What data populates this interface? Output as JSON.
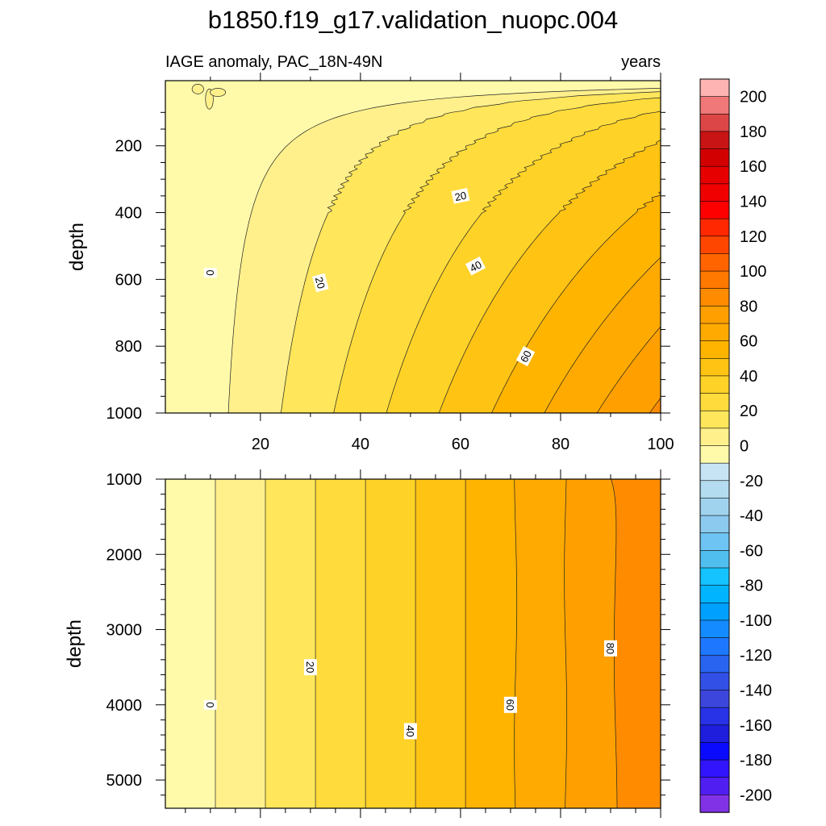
{
  "title": "b1850.f19_g17.validation_nuopc.004",
  "left_subtitle": "IAGE anomaly, PAC_18N-49N",
  "right_subtitle": "years",
  "chart_data": [
    {
      "type": "heatmap",
      "panel": "upper",
      "xlabel": "",
      "ylabel": "depth",
      "xlim": [
        1,
        100
      ],
      "ylim": [
        1000,
        5
      ],
      "x_ticks": [
        "20",
        "40",
        "60",
        "80",
        "100"
      ],
      "y_ticks": [
        "200",
        "400",
        "600",
        "800",
        "1000"
      ],
      "contour_interval": 10,
      "contour_labels": [
        {
          "text": "0",
          "x": 10,
          "depth": 580
        },
        {
          "text": "20",
          "x": 32,
          "depth": 610
        },
        {
          "text": "20",
          "x": 60,
          "depth": 350
        },
        {
          "text": "40",
          "x": 63,
          "depth": 560
        },
        {
          "text": "60",
          "x": 73,
          "depth": 830
        }
      ],
      "values_description_points": [
        {
          "x": 5,
          "depth": 100,
          "value": -5
        },
        {
          "x": 50,
          "depth": 100,
          "value": 5
        },
        {
          "x": 100,
          "depth": 100,
          "value": 10
        },
        {
          "x": 50,
          "depth": 400,
          "value": 30
        },
        {
          "x": 100,
          "depth": 500,
          "value": 60
        },
        {
          "x": 100,
          "depth": 1000,
          "value": 90
        }
      ]
    },
    {
      "type": "heatmap",
      "panel": "lower",
      "xlabel": "",
      "ylabel": "depth",
      "xlim": [
        1,
        100
      ],
      "ylim": [
        5375,
        1000
      ],
      "y_ticks": [
        "1000",
        "2000",
        "3000",
        "4000",
        "5000"
      ],
      "contour_interval": 10,
      "contour_labels": [
        {
          "text": "0",
          "x": 10,
          "depth": 4000
        },
        {
          "text": "20",
          "x": 30,
          "depth": 3500
        },
        {
          "text": "40",
          "x": 50,
          "depth": 4350
        },
        {
          "text": "60",
          "x": 70,
          "depth": 4000
        },
        {
          "text": "80",
          "x": 90,
          "depth": 3250
        }
      ],
      "values_description_points": [
        {
          "x": 5,
          "depth": 3000,
          "value": -5
        },
        {
          "x": 30,
          "depth": 3000,
          "value": 20
        },
        {
          "x": 60,
          "depth": 3000,
          "value": 50
        },
        {
          "x": 100,
          "depth": 3000,
          "value": 90
        }
      ]
    }
  ],
  "colorbar": {
    "tick_labels": [
      "200",
      "180",
      "160",
      "140",
      "120",
      "100",
      "80",
      "60",
      "40",
      "20",
      "0",
      "-20",
      "-40",
      "-60",
      "-80",
      "-100",
      "-120",
      "-140",
      "-160",
      "-180",
      "-200"
    ],
    "colors_top_to_bottom": [
      "#ffb4b4",
      "#f07878",
      "#dc4646",
      "#c81414",
      "#d20000",
      "#e60000",
      "#f00000",
      "#ff0000",
      "#ff2800",
      "#ff4600",
      "#ff6400",
      "#ff7800",
      "#ff8c00",
      "#ffa000",
      "#ffaa00",
      "#ffb400",
      "#ffc314",
      "#ffd228",
      "#ffdc3c",
      "#ffe65a",
      "#fff08c",
      "#fffaaa",
      "#c6e4f4",
      "#b4dcf0",
      "#a0d4ee",
      "#8ccaf0",
      "#6ec4f2",
      "#50beee",
      "#14c3ff",
      "#00b4ff",
      "#00a0ff",
      "#148cff",
      "#1e78ff",
      "#2864f0",
      "#3250e6",
      "#3c46dc",
      "#2832e6",
      "#1e1edc",
      "#0a0aff",
      "#3214ff",
      "#501ef0",
      "#8232e6"
    ]
  }
}
